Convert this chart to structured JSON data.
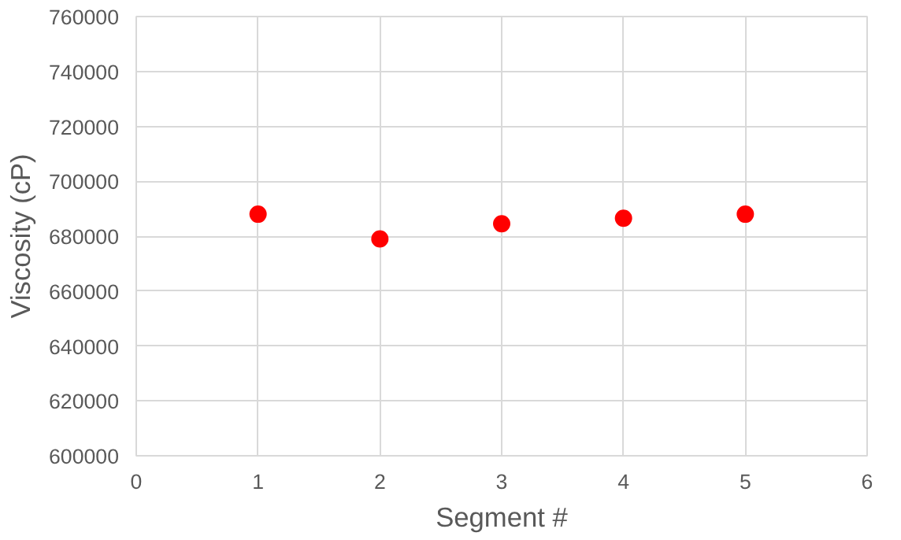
{
  "chart_data": {
    "type": "scatter",
    "xlabel": "Segment #",
    "ylabel": "Viscosity (cP)",
    "x": [
      1,
      2,
      3,
      4,
      5
    ],
    "series": [
      {
        "color": "#ff0000",
        "values": [
          688000,
          679000,
          684500,
          686500,
          688000
        ]
      }
    ],
    "xlim": [
      0,
      6
    ],
    "xticks": [
      0,
      1,
      2,
      3,
      4,
      5,
      6
    ],
    "ylim": [
      600000,
      760000
    ],
    "yticks": [
      600000,
      620000,
      640000,
      660000,
      680000,
      700000,
      720000,
      740000,
      760000
    ],
    "grid": true,
    "marker": "circle"
  }
}
